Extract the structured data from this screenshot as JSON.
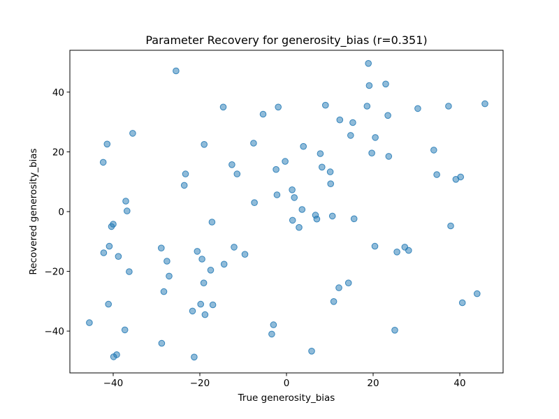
{
  "chart_data": {
    "type": "scatter",
    "title": "Parameter Recovery for generosity_bias (r=0.351)",
    "xlabel": "True generosity_bias",
    "ylabel": "Recovered generosity_bias",
    "xlim": [
      -50,
      50
    ],
    "ylim": [
      -54,
      54
    ],
    "xticks": [
      -40,
      -20,
      0,
      20,
      40
    ],
    "yticks": [
      -40,
      -20,
      0,
      20,
      40
    ],
    "grid": false,
    "legend": "none",
    "marker_color": "#1f77b4",
    "marker_alpha": 0.5,
    "points": [
      [
        -45.5,
        -37.2
      ],
      [
        -42.3,
        16.5
      ],
      [
        -42.2,
        -13.8
      ],
      [
        -41.4,
        22.6
      ],
      [
        -41.1,
        -31.0
      ],
      [
        -40.9,
        -11.6
      ],
      [
        -40.4,
        -5.0
      ],
      [
        -40.0,
        -4.2
      ],
      [
        -39.9,
        -48.6
      ],
      [
        -39.2,
        -47.9
      ],
      [
        -38.8,
        -15.0
      ],
      [
        -37.3,
        -39.6
      ],
      [
        -37.1,
        3.5
      ],
      [
        -36.8,
        0.2
      ],
      [
        -36.3,
        -20.1
      ],
      [
        -35.5,
        26.2
      ],
      [
        -28.9,
        -12.2
      ],
      [
        -28.8,
        -44.1
      ],
      [
        -28.3,
        -26.8
      ],
      [
        -27.6,
        -16.6
      ],
      [
        -27.1,
        -21.6
      ],
      [
        -25.5,
        47.1
      ],
      [
        -23.6,
        8.8
      ],
      [
        -23.3,
        12.6
      ],
      [
        -21.7,
        -33.3
      ],
      [
        -21.3,
        -48.7
      ],
      [
        -20.6,
        -13.3
      ],
      [
        -19.8,
        -31.0
      ],
      [
        -19.5,
        -15.9
      ],
      [
        -19.1,
        -23.9
      ],
      [
        -19.0,
        22.5
      ],
      [
        -18.8,
        -34.5
      ],
      [
        -17.5,
        -19.6
      ],
      [
        -17.2,
        -3.5
      ],
      [
        -17.0,
        -31.2
      ],
      [
        -14.6,
        35.0
      ],
      [
        -14.4,
        -17.6
      ],
      [
        -12.6,
        15.7
      ],
      [
        -12.1,
        -11.9
      ],
      [
        -11.4,
        12.6
      ],
      [
        -9.6,
        -14.3
      ],
      [
        -7.6,
        22.9
      ],
      [
        -7.4,
        3.0
      ],
      [
        -5.4,
        32.6
      ],
      [
        -3.4,
        -41.0
      ],
      [
        -3.0,
        -37.9
      ],
      [
        -2.4,
        14.1
      ],
      [
        -2.2,
        5.6
      ],
      [
        -1.9,
        35.0
      ],
      [
        -0.3,
        16.8
      ],
      [
        1.3,
        7.3
      ],
      [
        1.4,
        -2.9
      ],
      [
        1.8,
        4.7
      ],
      [
        2.9,
        -5.3
      ],
      [
        3.6,
        0.7
      ],
      [
        3.9,
        21.8
      ],
      [
        5.8,
        -46.7
      ],
      [
        6.7,
        -1.2
      ],
      [
        7.0,
        -2.5
      ],
      [
        7.8,
        19.4
      ],
      [
        8.2,
        14.9
      ],
      [
        9.0,
        35.6
      ],
      [
        10.1,
        13.3
      ],
      [
        10.2,
        9.3
      ],
      [
        10.6,
        -1.5
      ],
      [
        10.9,
        -30.1
      ],
      [
        12.1,
        -25.5
      ],
      [
        12.3,
        30.7
      ],
      [
        14.3,
        -23.9
      ],
      [
        14.8,
        25.5
      ],
      [
        15.3,
        29.8
      ],
      [
        15.6,
        -2.4
      ],
      [
        18.6,
        35.3
      ],
      [
        18.9,
        49.6
      ],
      [
        19.1,
        42.2
      ],
      [
        19.7,
        19.6
      ],
      [
        20.4,
        -11.6
      ],
      [
        20.5,
        24.8
      ],
      [
        22.9,
        42.7
      ],
      [
        23.4,
        32.2
      ],
      [
        23.6,
        18.5
      ],
      [
        25.0,
        -39.7
      ],
      [
        25.5,
        -13.5
      ],
      [
        27.3,
        -11.9
      ],
      [
        28.2,
        -13.0
      ],
      [
        30.3,
        34.5
      ],
      [
        34.0,
        20.6
      ],
      [
        34.7,
        12.4
      ],
      [
        37.4,
        35.3
      ],
      [
        37.9,
        -4.8
      ],
      [
        39.1,
        10.8
      ],
      [
        40.2,
        11.6
      ],
      [
        40.6,
        -30.5
      ],
      [
        44.0,
        -27.5
      ],
      [
        45.8,
        36.1
      ]
    ]
  }
}
